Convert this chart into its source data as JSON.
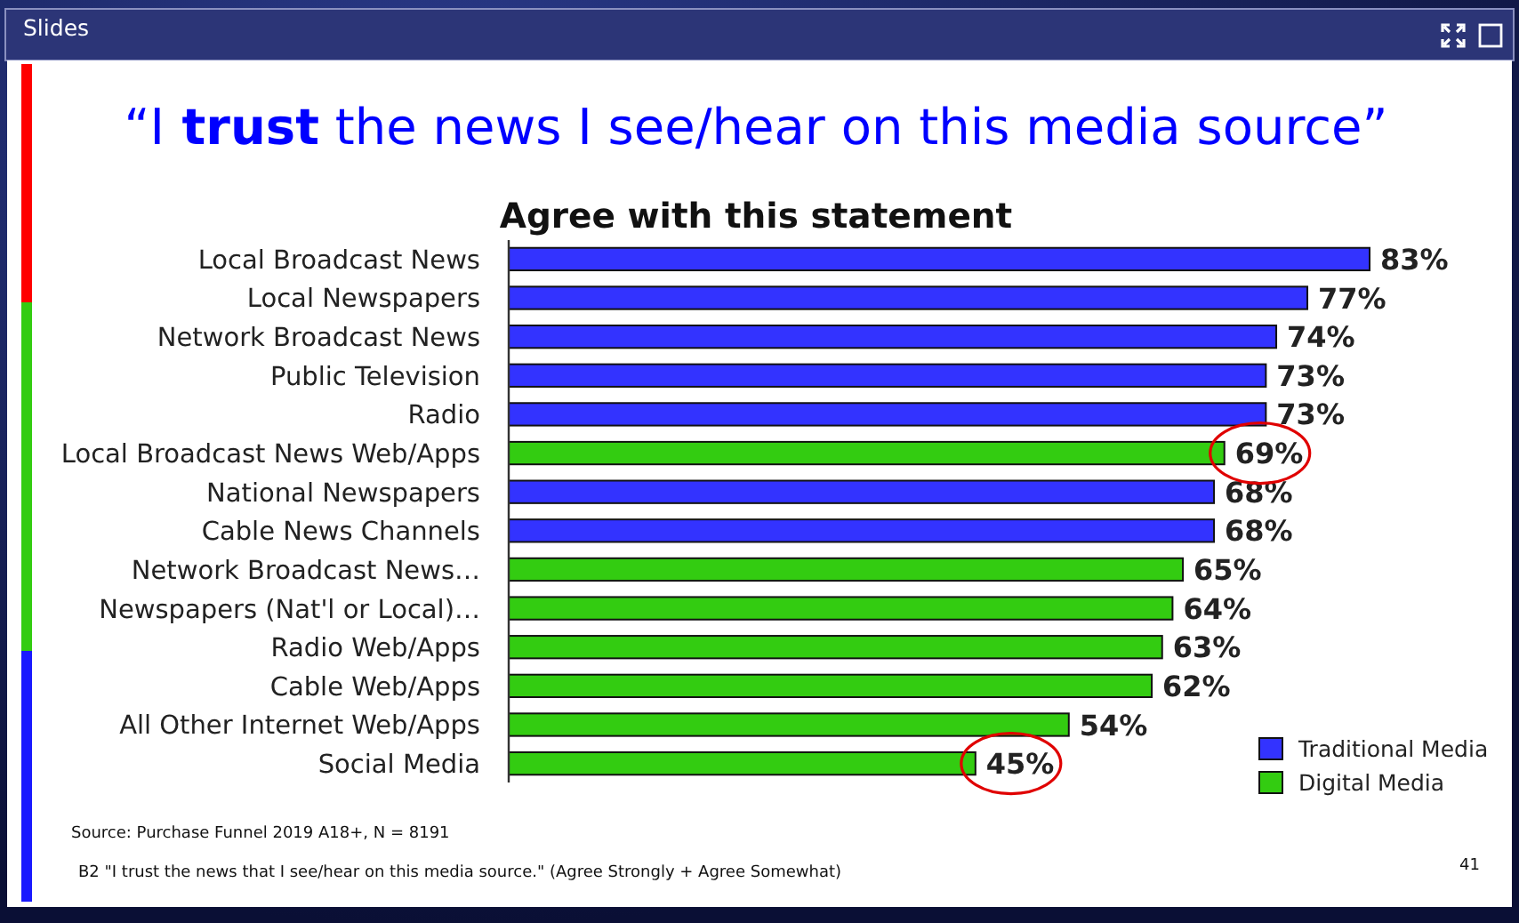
{
  "chart_data": {
    "type": "bar",
    "orientation": "horizontal",
    "stacked": true,
    "title": "“I trust the news I see/hear on this media source”",
    "subtitle": "Agree with this statement",
    "categories": [
      "Local Broadcast News",
      "Local Newspapers",
      "Network Broadcast News",
      "Public Television",
      "Radio",
      "Local Broadcast News Web/Apps",
      "National Newspapers",
      "Cable News Channels",
      "Network Broadcast News…",
      "Newspapers (Nat'l or Local)…",
      "Radio Web/Apps",
      "Cable Web/Apps",
      "All Other Internet Web/Apps",
      "Social Media"
    ],
    "series": [
      {
        "name": "Traditional Media",
        "color": "#3333ff",
        "values": [
          83,
          77,
          74,
          73,
          73,
          null,
          68,
          68,
          null,
          null,
          null,
          null,
          null,
          null
        ],
        "value_labels": [
          "83%",
          "77%",
          "74%",
          "73%",
          "73%",
          null,
          "68%",
          "68%",
          null,
          null,
          null,
          null,
          null,
          null
        ]
      },
      {
        "name": "Digital Media",
        "color": "#33cc11",
        "values": [
          null,
          null,
          null,
          null,
          null,
          69,
          null,
          null,
          65,
          64,
          63,
          62,
          54,
          45
        ],
        "value_labels": [
          null,
          null,
          null,
          null,
          null,
          "69%",
          null,
          null,
          "65%",
          "64%",
          "63%",
          "62%",
          "54%",
          "45%"
        ]
      }
    ],
    "legend": "bottom right",
    "annotations": [
      "Slides",
      "Source: Purchase Funnel 2019 A18+, N = 8191",
      "B2 \"I trust the news that I see/hear on this media source.\" (Agree Strongly + Agree Somewhat)",
      "41"
    ]
  }
}
